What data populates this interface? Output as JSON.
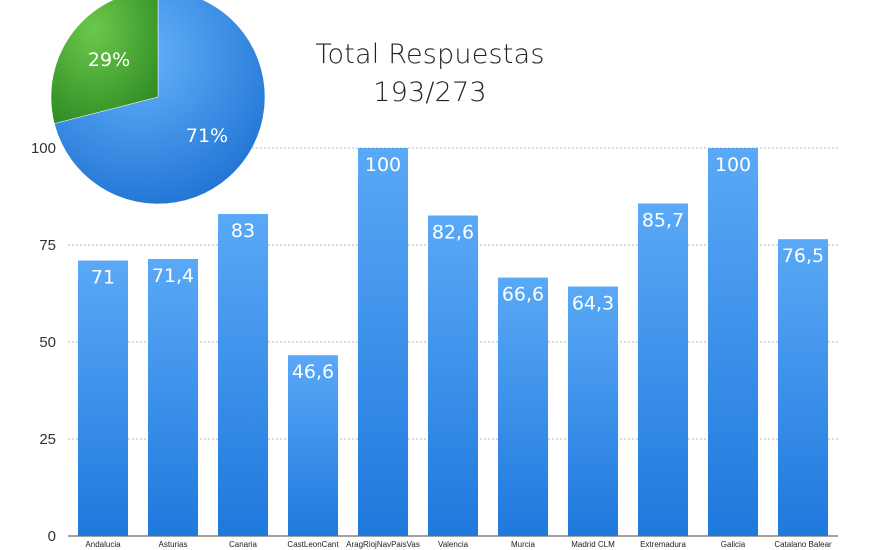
{
  "chart_data": [
    {
      "type": "bar",
      "title": "",
      "xlabel": "",
      "ylabel": "",
      "ylim": [
        0,
        100
      ],
      "yticks": [
        0,
        25,
        50,
        75,
        100
      ],
      "grid": true,
      "categories": [
        "Andalucia",
        "Asturias",
        "Canaria",
        "CastLeonCant",
        "AragRiojNavPaisVas",
        "Valencia",
        "Murcia",
        "Madrid CLM",
        "Extremadura",
        "Galicia",
        "Catalano Balear"
      ],
      "values": [
        71,
        71.4,
        83,
        46.6,
        100,
        82.6,
        66.6,
        64.3,
        85.7,
        100,
        76.5
      ],
      "value_labels": [
        "71",
        "71,4",
        "83",
        "46,6",
        "100",
        "82,6",
        "66,6",
        "64,3",
        "85,7",
        "100",
        "76,5"
      ],
      "colors": {
        "bar_top": "#5aa9f7",
        "bar_bottom": "#1f78dc",
        "grid": "#b5b5b5",
        "axis": "#444444"
      }
    },
    {
      "type": "pie",
      "title": "Total Respuestas",
      "subtitle": "193/273",
      "slices": [
        {
          "label": "71%",
          "value": 71,
          "color": "#2d87e6"
        },
        {
          "label": "29%",
          "value": 29,
          "color": "#3c9a2c"
        }
      ]
    }
  ]
}
